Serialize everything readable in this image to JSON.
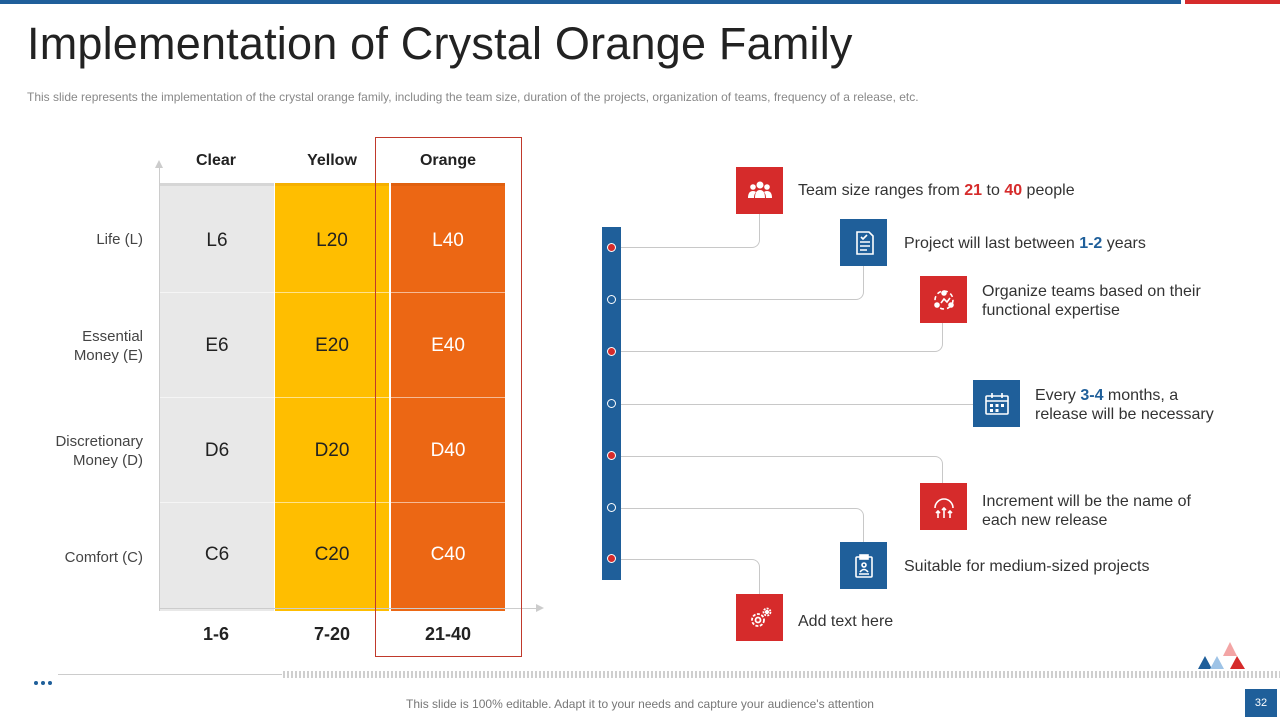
{
  "header": {
    "title": "Implementation of Crystal Orange Family",
    "subtitle": "This slide represents the implementation of the crystal orange family, including the team size, duration of the projects, organization of teams, frequency of a release, etc."
  },
  "matrix": {
    "columns": [
      "Clear",
      "Yellow",
      "Orange"
    ],
    "rows": [
      {
        "label": "Life (L)",
        "cells": [
          "L6",
          "L20",
          "L40"
        ]
      },
      {
        "label_line1": "Essential",
        "label_line2": "Money (E)",
        "cells": [
          "E6",
          "E20",
          "E40"
        ]
      },
      {
        "label_line1": "Discretionary",
        "label_line2": "Money (D)",
        "cells": [
          "D6",
          "D20",
          "D40"
        ]
      },
      {
        "label": "Comfort (C)",
        "cells": [
          "C6",
          "C20",
          "C40"
        ]
      }
    ],
    "ranges": [
      "1-6",
      "7-20",
      "21-40"
    ]
  },
  "items": [
    {
      "icon": "team-icon",
      "pre": "Team size ranges from ",
      "n1": "21",
      "mid": " to ",
      "n2": "40",
      "post": " people"
    },
    {
      "icon": "document-icon",
      "pre": "Project will last between ",
      "n1": "1-2",
      "post": " years"
    },
    {
      "icon": "organization-icon",
      "line1": "Organize teams based on their",
      "line2": "functional  expertise"
    },
    {
      "icon": "calendar-icon",
      "pre": "Every ",
      "n1": "3-4",
      "post": " months, a",
      "line2": "release will be necessary"
    },
    {
      "icon": "growth-icon",
      "line1": "Increment  will be the name of",
      "line2": "each new release"
    },
    {
      "icon": "clipboard-icon",
      "text": "Suitable for medium-sized projects"
    },
    {
      "icon": "gears-icon",
      "text": "Add text here"
    }
  ],
  "footer": {
    "text": "This slide is 100% editable. Adapt it to your needs and capture your audience's attention",
    "page": "32"
  },
  "colors": {
    "blue": "#1f5f9a",
    "red": "#d62b2b",
    "yellow": "#ffbe00",
    "orange": "#ec6714",
    "clear": "#e8e8e8"
  }
}
